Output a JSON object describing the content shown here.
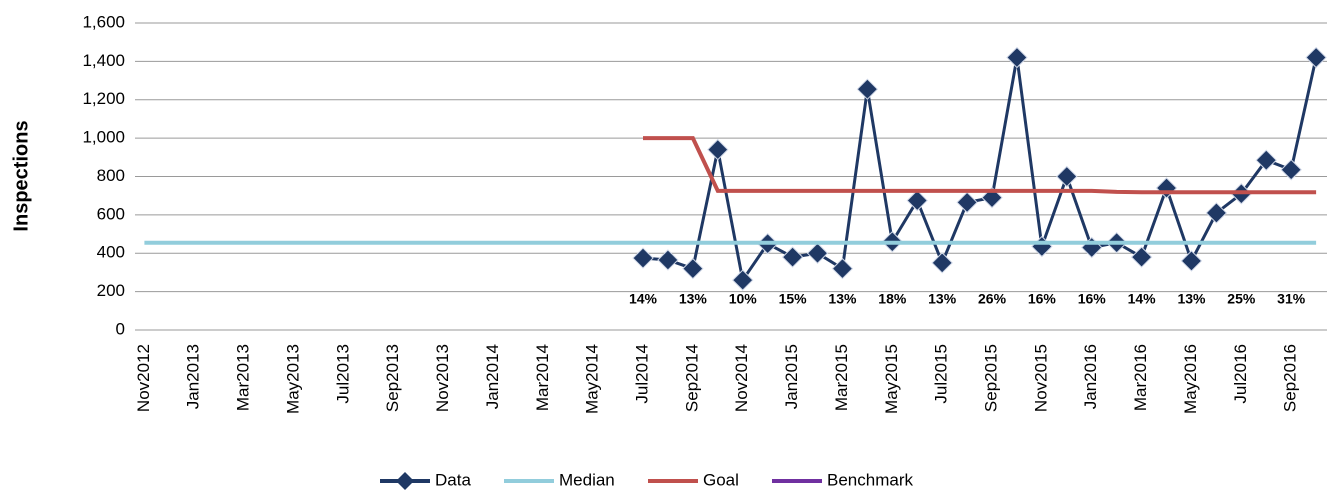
{
  "chart_data": {
    "type": "line",
    "y_label": "Inspections",
    "categories": [
      "Nov2012",
      null,
      "Jan2013",
      null,
      "Mar2013",
      null,
      "May2013",
      null,
      "Jul2013",
      null,
      "Sep2013",
      null,
      "Nov2013",
      null,
      "Jan2014",
      null,
      "Mar2014",
      null,
      "May2014",
      null,
      "Jul2014",
      null,
      "Sep2014",
      null,
      "Nov2014",
      null,
      "Jan2015",
      null,
      "Mar2015",
      null,
      "May2015",
      null,
      "Jul2015",
      null,
      "Sep2015",
      null,
      "Nov2015",
      null,
      "Jan2016",
      null,
      "Mar2016",
      null,
      "May2016",
      null,
      "Jul2016",
      null,
      "Sep2016",
      null
    ],
    "series": [
      {
        "name": "Data",
        "color": "#1f3864",
        "marker": "diamond",
        "values": [
          null,
          null,
          null,
          null,
          null,
          null,
          null,
          null,
          null,
          null,
          null,
          null,
          null,
          null,
          null,
          null,
          null,
          null,
          null,
          null,
          375,
          365,
          320,
          940,
          260,
          450,
          380,
          400,
          320,
          1255,
          460,
          675,
          350,
          665,
          690,
          1420,
          435,
          800,
          430,
          455,
          380,
          740,
          360,
          610,
          710,
          885,
          835,
          1420
        ]
      },
      {
        "name": "Median",
        "color": "#92cddc",
        "values": [
          455,
          455,
          455,
          455,
          455,
          455,
          455,
          455,
          455,
          455,
          455,
          455,
          455,
          455,
          455,
          455,
          455,
          455,
          455,
          455,
          455,
          455,
          455,
          455,
          455,
          455,
          455,
          455,
          455,
          455,
          455,
          455,
          455,
          455,
          455,
          455,
          455,
          455,
          455,
          455,
          455,
          455,
          455,
          455,
          455,
          455,
          455,
          455
        ]
      },
      {
        "name": "Goal",
        "color": "#c0504d",
        "values": [
          null,
          null,
          null,
          null,
          null,
          null,
          null,
          null,
          null,
          null,
          null,
          null,
          null,
          null,
          null,
          null,
          null,
          null,
          null,
          null,
          1000,
          1000,
          1000,
          725,
          725,
          725,
          725,
          725,
          725,
          725,
          725,
          725,
          725,
          725,
          725,
          725,
          725,
          725,
          725,
          720,
          718,
          718,
          718,
          718,
          718,
          718,
          718,
          718
        ]
      },
      {
        "name": "Benchmark",
        "color": "#7030a0",
        "values": [
          null,
          null,
          null,
          null,
          null,
          null,
          null,
          null,
          null,
          null,
          null,
          null,
          null,
          null,
          null,
          null,
          null,
          null,
          null,
          null,
          null,
          null,
          null,
          null,
          null,
          null,
          null,
          null,
          null,
          null,
          null,
          null,
          null,
          null,
          null,
          null,
          null,
          null,
          null,
          null,
          null,
          null,
          null,
          null,
          null,
          null,
          null,
          null
        ]
      }
    ],
    "rates": {
      "values": [
        null,
        null,
        null,
        null,
        null,
        null,
        null,
        null,
        null,
        null,
        null,
        null,
        null,
        null,
        null,
        null,
        null,
        null,
        null,
        null,
        14,
        null,
        13,
        null,
        10,
        null,
        15,
        null,
        13,
        null,
        18,
        null,
        13,
        null,
        26,
        null,
        16,
        null,
        16,
        null,
        14,
        null,
        13,
        null,
        25,
        null,
        31,
        null
      ],
      "value_labels": [
        null,
        null,
        null,
        null,
        null,
        null,
        null,
        null,
        null,
        null,
        null,
        null,
        null,
        null,
        null,
        null,
        null,
        null,
        null,
        null,
        "14%",
        null,
        "13%",
        null,
        "10%",
        null,
        "15%",
        null,
        "13%",
        null,
        "18%",
        null,
        "13%",
        null,
        "26%",
        null,
        "16%",
        null,
        "16%",
        null,
        "14%",
        null,
        "13%",
        null,
        "25%",
        null,
        "31%",
        null
      ]
    },
    "ylim": [
      0,
      1600
    ],
    "yticks": [
      0,
      200,
      400,
      600,
      800,
      {
        "value": 1000,
        "label": "1,000"
      },
      {
        "value": 1200,
        "label": "1,200"
      },
      {
        "value": 1400,
        "label": "1,400"
      },
      {
        "value": 1600,
        "label": "1,600"
      }
    ],
    "grid": true,
    "legend": "bottom"
  }
}
